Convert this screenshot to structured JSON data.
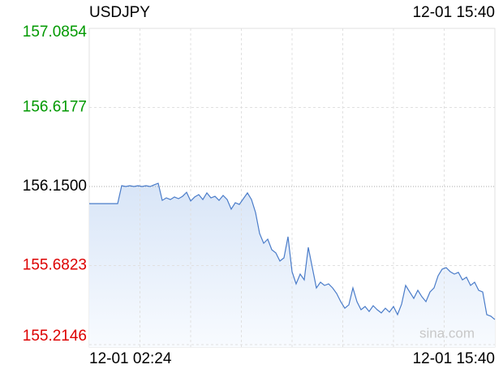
{
  "chart_data": {
    "type": "line",
    "title": "USDJPY",
    "timestamp": "12-01 15:40",
    "watermark": "sina.com",
    "categories": [
      "12-01 02:24",
      null,
      null,
      null,
      null,
      null,
      null,
      null,
      null,
      null,
      null,
      null,
      null,
      null,
      null,
      null,
      null,
      null,
      null,
      null,
      null,
      null,
      null,
      null,
      null,
      null,
      null,
      null,
      null,
      null,
      null,
      null,
      null,
      null,
      null,
      null,
      null,
      null,
      null,
      null,
      null,
      null,
      null,
      null,
      null,
      null,
      null,
      null,
      null,
      null,
      null,
      null,
      null,
      null,
      null,
      null,
      null,
      null,
      null,
      null,
      null,
      null,
      null,
      null,
      null,
      null,
      null,
      null,
      null,
      null,
      null,
      null,
      null,
      null,
      null,
      null,
      null,
      null,
      null,
      null,
      null,
      null,
      null,
      null,
      null,
      null,
      null,
      null,
      null,
      null,
      null,
      null,
      null,
      null,
      null,
      null,
      null,
      null,
      null,
      null,
      "12-01 15:40"
    ],
    "series": [
      {
        "color": "#4a7cc9",
        "values": [
          156.049,
          156.049,
          156.049,
          156.049,
          156.049,
          156.049,
          156.049,
          156.049,
          156.155,
          156.15,
          156.155,
          156.15,
          156.155,
          156.15,
          156.155,
          156.15,
          156.16,
          156.169,
          156.068,
          156.083,
          156.073,
          156.088,
          156.078,
          156.092,
          156.116,
          156.064,
          156.088,
          156.102,
          156.073,
          156.112,
          156.083,
          156.092,
          156.068,
          156.097,
          156.073,
          156.016,
          156.054,
          156.044,
          156.078,
          156.112,
          156.073,
          155.996,
          155.872,
          155.814,
          155.838,
          155.776,
          155.757,
          155.709,
          155.728,
          155.853,
          155.646,
          155.574,
          155.632,
          155.598,
          155.79,
          155.67,
          155.55,
          155.584,
          155.565,
          155.574,
          155.55,
          155.517,
          155.469,
          155.43,
          155.45,
          155.55,
          155.469,
          155.421,
          155.44,
          155.411,
          155.445,
          155.421,
          155.402,
          155.43,
          155.407,
          155.44,
          155.392,
          155.454,
          155.565,
          155.526,
          155.488,
          155.536,
          155.498,
          155.469,
          155.526,
          155.55,
          155.622,
          155.661,
          155.67,
          155.646,
          155.632,
          155.642,
          155.598,
          155.613,
          155.565,
          155.584,
          155.536,
          155.526,
          155.392,
          155.383,
          155.363
        ]
      }
    ],
    "ylim": [
      155.2146,
      157.0854
    ],
    "yticks": [
      157.0854,
      156.6177,
      {
        "value": 156.15,
        "label": "156.1500"
      },
      155.6823,
      155.2146
    ],
    "ytick_colors": [
      "#009900",
      "#009900",
      "#000000",
      "#dd0000",
      "#dd0000"
    ],
    "grid": true
  }
}
